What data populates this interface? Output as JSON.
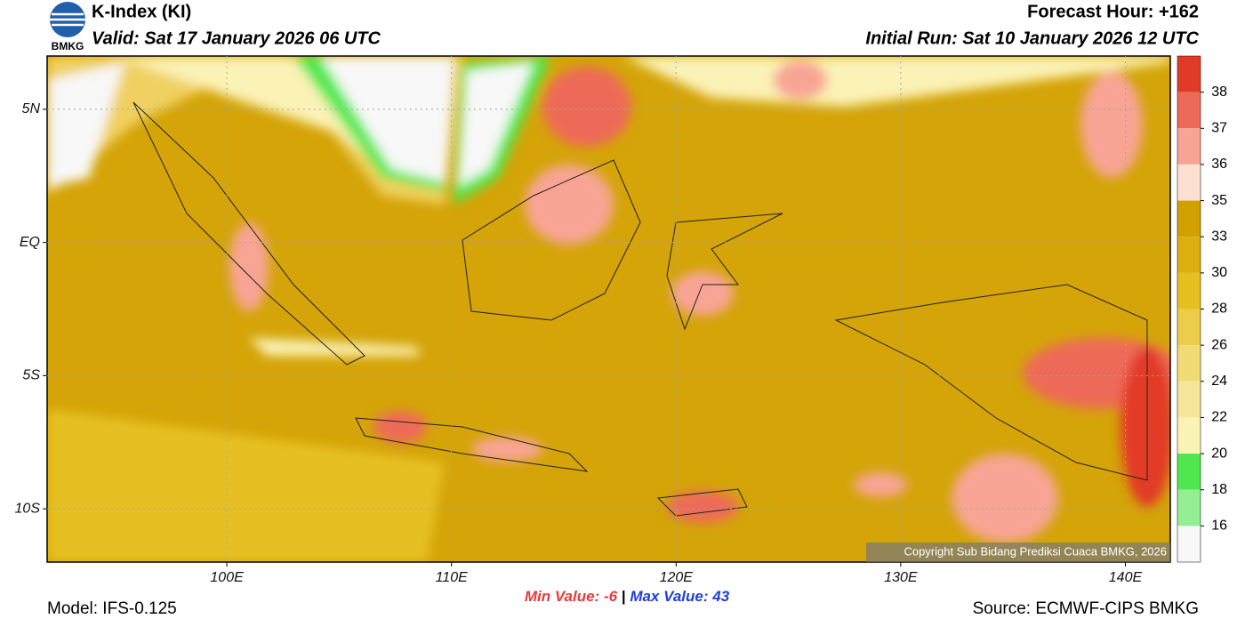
{
  "header": {
    "logo_text": "BMKG",
    "title": "K-Index (KI)",
    "valid": "Valid: Sat 17 January 2026 06 UTC",
    "forecast_hour": "Forecast Hour: +162",
    "initial_run": "Initial Run: Sat 10 January 2026 12 UTC"
  },
  "map": {
    "lon_range": [
      92,
      142
    ],
    "lat_range": [
      -12,
      7
    ],
    "lon_ticks": [
      {
        "value": 100,
        "label": "100E"
      },
      {
        "value": 110,
        "label": "110E"
      },
      {
        "value": 120,
        "label": "120E"
      },
      {
        "value": 130,
        "label": "130E"
      },
      {
        "value": 140,
        "label": "140E"
      }
    ],
    "lat_ticks": [
      {
        "value": 5,
        "label": "5N"
      },
      {
        "value": 0,
        "label": "EQ"
      },
      {
        "value": -5,
        "label": "5S"
      },
      {
        "value": -10,
        "label": "10S"
      }
    ],
    "copyright": "Copyright Sub Bidang Prediksi Cuaca BMKG, 2026"
  },
  "colorbar": {
    "ticks": [
      38,
      37,
      36,
      35,
      33,
      30,
      28,
      26,
      24,
      22,
      20,
      18,
      16
    ],
    "colors": [
      "#e23a28",
      "#ee6a58",
      "#f8a494",
      "#fde0d2",
      "#d2a000",
      "#dcae10",
      "#e6c020",
      "#eccc48",
      "#f2da74",
      "#f6e69c",
      "#fbf2b6",
      "#4ee84e",
      "#94ee94",
      "#f8f8f8"
    ]
  },
  "footer": {
    "min_label": "Min Value:",
    "min_value": -6,
    "separator": "|",
    "max_label": "Max Value:",
    "max_value": 43,
    "model": "Model: IFS-0.125",
    "source": "Source: ECMWF-CIPS BMKG"
  }
}
